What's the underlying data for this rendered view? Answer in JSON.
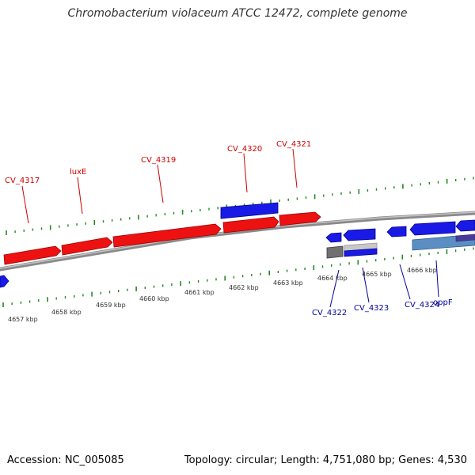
{
  "title": "Chromobacterium violaceum ATCC 12472, complete genome",
  "footer": {
    "accession": "Accession: NC_005085",
    "summary": "Topology: circular; Length: 4,751,080 bp; Genes: 4,530"
  },
  "colors": {
    "forward_gene": "#ee1111",
    "reverse_gene": "#1a1ae6",
    "gray_gene": "#707070",
    "light_gene": "#c8c8c8",
    "teal_gene": "#5b8fc4",
    "tick": "#228822",
    "backbone": "#8a8a8a",
    "forward_label": "#cc0000",
    "reverse_label": "#000099"
  },
  "kbp_labels": [
    "4657 kbp",
    "4658 kbp",
    "4659 kbp",
    "4660 kbp",
    "4661 kbp",
    "4662 kbp",
    "4663 kbp",
    "4664 kbp",
    "4665 kbp",
    "4666 kbp"
  ],
  "forward_gene_labels": [
    "CV_4317",
    "luxE",
    "CV_4319",
    "CV_4320",
    "CV_4321"
  ],
  "reverse_gene_labels": [
    "CV_4322",
    "CV_4323",
    "CV_4324",
    "oppF"
  ]
}
